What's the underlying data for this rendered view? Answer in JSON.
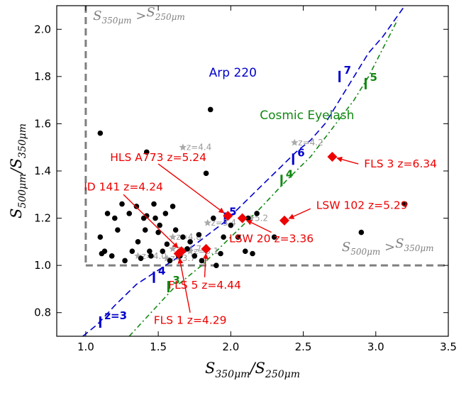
{
  "chart_data": {
    "type": "scatter",
    "xlabel": "S_350μm / S_250μm",
    "ylabel": "S_500μm / S_350μm",
    "xlim": [
      0.8,
      3.5
    ],
    "ylim": [
      0.7,
      2.1
    ],
    "x_ticks": [
      "1.0",
      "1.5",
      "2.0",
      "2.5",
      "3.0",
      "3.5"
    ],
    "x_tick_values": [
      1.0,
      1.5,
      2.0,
      2.5,
      3.0,
      3.5
    ],
    "y_ticks": [
      "0.8",
      "1.0",
      "1.2",
      "1.4",
      "1.6",
      "1.8",
      "2.0"
    ],
    "y_tick_values": [
      0.8,
      1.0,
      1.2,
      1.4,
      1.6,
      1.8,
      2.0
    ],
    "region_labels": [
      {
        "name": "region-label-350-gt-250",
        "text": "S350μm > S250μm"
      },
      {
        "name": "region-label-500-gt-350",
        "text": "S500μm > S350μm"
      }
    ],
    "colors": {
      "black": "#000000",
      "blue": "#0000cc",
      "green": "#118811",
      "red": "#ee0000",
      "grey": "#aaaaaa",
      "dashed": "#7f7f7f"
    },
    "tracks": [
      {
        "name": "Arp 220",
        "color": "#0000cc",
        "style": "dashed",
        "x": [
          0.98,
          1.08,
          1.2,
          1.35,
          1.5,
          1.65,
          1.8,
          1.95,
          2.05,
          2.15,
          2.25,
          2.35,
          2.45,
          2.55,
          2.65,
          2.75,
          2.85,
          2.95,
          3.05,
          3.2
        ],
        "y": [
          0.7,
          0.75,
          0.83,
          0.92,
          0.98,
          1.04,
          1.11,
          1.18,
          1.24,
          1.3,
          1.36,
          1.42,
          1.48,
          1.53,
          1.6,
          1.7,
          1.8,
          1.9,
          1.97,
          2.1
        ],
        "markers": [
          {
            "label": "z=3",
            "x": 1.1,
            "y": 0.76
          },
          {
            "label": "4",
            "x": 1.47,
            "y": 0.95
          },
          {
            "label": "5",
            "x": 1.96,
            "y": 1.2
          },
          {
            "label": "6",
            "x": 2.43,
            "y": 1.45
          },
          {
            "label": "7",
            "x": 2.75,
            "y": 1.8
          }
        ]
      },
      {
        "name": "Cosmic Eyelash",
        "color": "#118811",
        "style": "dash-dot",
        "x": [
          1.3,
          1.45,
          1.6,
          1.8,
          2.0,
          2.2,
          2.4,
          2.55,
          2.7,
          2.85,
          2.95,
          3.05,
          3.15
        ],
        "y": [
          0.7,
          0.8,
          0.9,
          1.0,
          1.12,
          1.24,
          1.37,
          1.46,
          1.58,
          1.7,
          1.8,
          1.92,
          2.04
        ],
        "markers": [
          {
            "label": "3",
            "x": 1.57,
            "y": 0.91
          },
          {
            "label": "4",
            "x": 2.35,
            "y": 1.36
          },
          {
            "label": "5",
            "x": 2.93,
            "y": 1.77
          }
        ]
      }
    ],
    "black_points": {
      "x": [
        1.1,
        1.11,
        1.13,
        1.15,
        1.18,
        1.2,
        1.22,
        1.25,
        1.27,
        1.3,
        1.32,
        1.35,
        1.36,
        1.38,
        1.4,
        1.41,
        1.42,
        1.44,
        1.45,
        1.47,
        1.48,
        1.5,
        1.51,
        1.53,
        1.55,
        1.56,
        1.58,
        1.6,
        1.62,
        1.64,
        1.65,
        1.67,
        1.7,
        1.72,
        1.75,
        1.78,
        1.8,
        1.83,
        1.86,
        1.88,
        1.9,
        1.93,
        1.95,
        1.98,
        2.0,
        2.05,
        2.1,
        2.12,
        2.15,
        2.18,
        2.3,
        2.9,
        3.2,
        1.1,
        1.42
      ],
      "y": [
        1.12,
        1.05,
        1.06,
        1.22,
        1.04,
        1.2,
        1.15,
        1.26,
        1.02,
        1.22,
        1.06,
        1.25,
        1.1,
        1.03,
        1.2,
        1.15,
        1.48,
        1.06,
        1.04,
        1.26,
        1.2,
        1.14,
        1.17,
        1.06,
        1.22,
        1.09,
        1.02,
        1.25,
        1.15,
        1.04,
        1.04,
        1.12,
        1.07,
        1.1,
        1.04,
        1.13,
        1.02,
        1.39,
        1.66,
        1.2,
        1.0,
        1.05,
        1.12,
        1.21,
        1.17,
        1.12,
        1.06,
        1.2,
        1.05,
        1.22,
        1.12,
        1.14,
        1.26,
        1.56,
        1.21
      ]
    },
    "grey_stars": [
      {
        "label": "z=4.4",
        "x": 1.67,
        "y": 1.5
      },
      {
        "label": "z=4.2",
        "x": 2.44,
        "y": 1.52
      },
      {
        "label": "z=4.8",
        "x": 1.6,
        "y": 1.12
      },
      {
        "label": "z=3.4",
        "x": 1.84,
        "y": 1.18
      },
      {
        "label": "5.2",
        "x": 2.14,
        "y": 1.2
      },
      {
        "label": "z=4.0",
        "x": 1.36,
        "y": 1.04
      },
      {
        "label": "z=3.7",
        "x": 1.56,
        "y": 1.03
      },
      {
        "label": "z=3.1",
        "x": 1.72,
        "y": 1.06
      },
      {
        "label": "z=4.7",
        "x": 1.6,
        "y": 1.07
      }
    ],
    "red_points": [
      {
        "label": "HLS A773 z=5.24",
        "x": 1.98,
        "y": 1.21,
        "label_x": 1.5,
        "label_y": 1.43
      },
      {
        "label": "FLS 3 z=6.34",
        "x": 2.7,
        "y": 1.46,
        "label_x": 2.88,
        "label_y": 1.43
      },
      {
        "label": "ID 141 z=4.24",
        "x": 1.66,
        "y": 1.06,
        "label_x": 1.26,
        "label_y": 1.3
      },
      {
        "label": "LSW 102 z=5.29",
        "x": 2.37,
        "y": 1.19,
        "label_x": 2.55,
        "label_y": 1.24
      },
      {
        "label": "LSW 20 z=3.36",
        "x": 2.08,
        "y": 1.2,
        "label_x": 2.28,
        "label_y": 1.14
      },
      {
        "label": "FLS 5 z=4.44",
        "x": 1.83,
        "y": 1.07,
        "label_x": 1.82,
        "label_y": 0.95
      },
      {
        "label": "FLS 1 z=4.29",
        "x": 1.64,
        "y": 1.05,
        "label_x": 1.72,
        "label_y": 0.8
      }
    ]
  }
}
